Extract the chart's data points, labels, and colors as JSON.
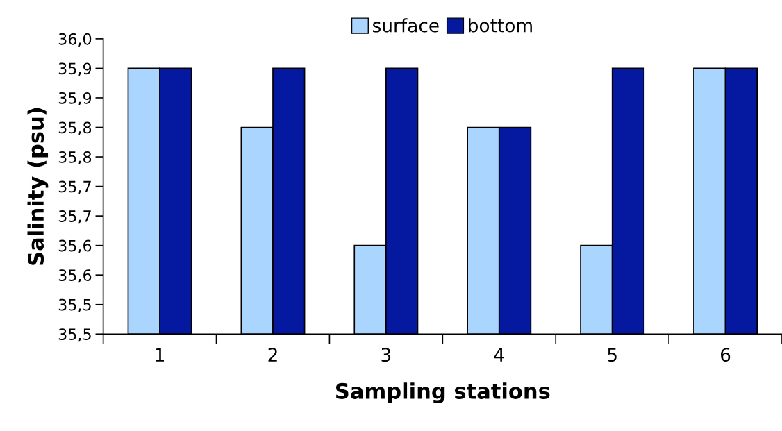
{
  "chart_data": {
    "type": "bar",
    "xlabel": "Sampling stations",
    "ylabel": "Salinity (psu)",
    "categories": [
      "1",
      "2",
      "3",
      "4",
      "5",
      "6"
    ],
    "series": [
      {
        "name": "surface",
        "color": "#aad5fe",
        "values": [
          35.95,
          35.85,
          35.65,
          35.85,
          35.65,
          35.95
        ]
      },
      {
        "name": "bottom",
        "color": "#0419a0",
        "values": [
          35.95,
          35.95,
          35.95,
          35.85,
          35.95,
          35.95
        ]
      }
    ],
    "ylim": [
      35.5,
      36.0
    ],
    "yticks": [
      {
        "value": 35.5,
        "label": "35,5"
      },
      {
        "value": 35.55,
        "label": "35,5"
      },
      {
        "value": 35.6,
        "label": "35,6"
      },
      {
        "value": 35.65,
        "label": "35,6"
      },
      {
        "value": 35.7,
        "label": "35,7"
      },
      {
        "value": 35.75,
        "label": "35,7"
      },
      {
        "value": 35.8,
        "label": "35,8"
      },
      {
        "value": 35.85,
        "label": "35,8"
      },
      {
        "value": 35.9,
        "label": "35,9"
      },
      {
        "value": 35.95,
        "label": "35,9"
      },
      {
        "value": 36.0,
        "label": "36,0"
      }
    ],
    "grid": false,
    "legend": "top"
  }
}
